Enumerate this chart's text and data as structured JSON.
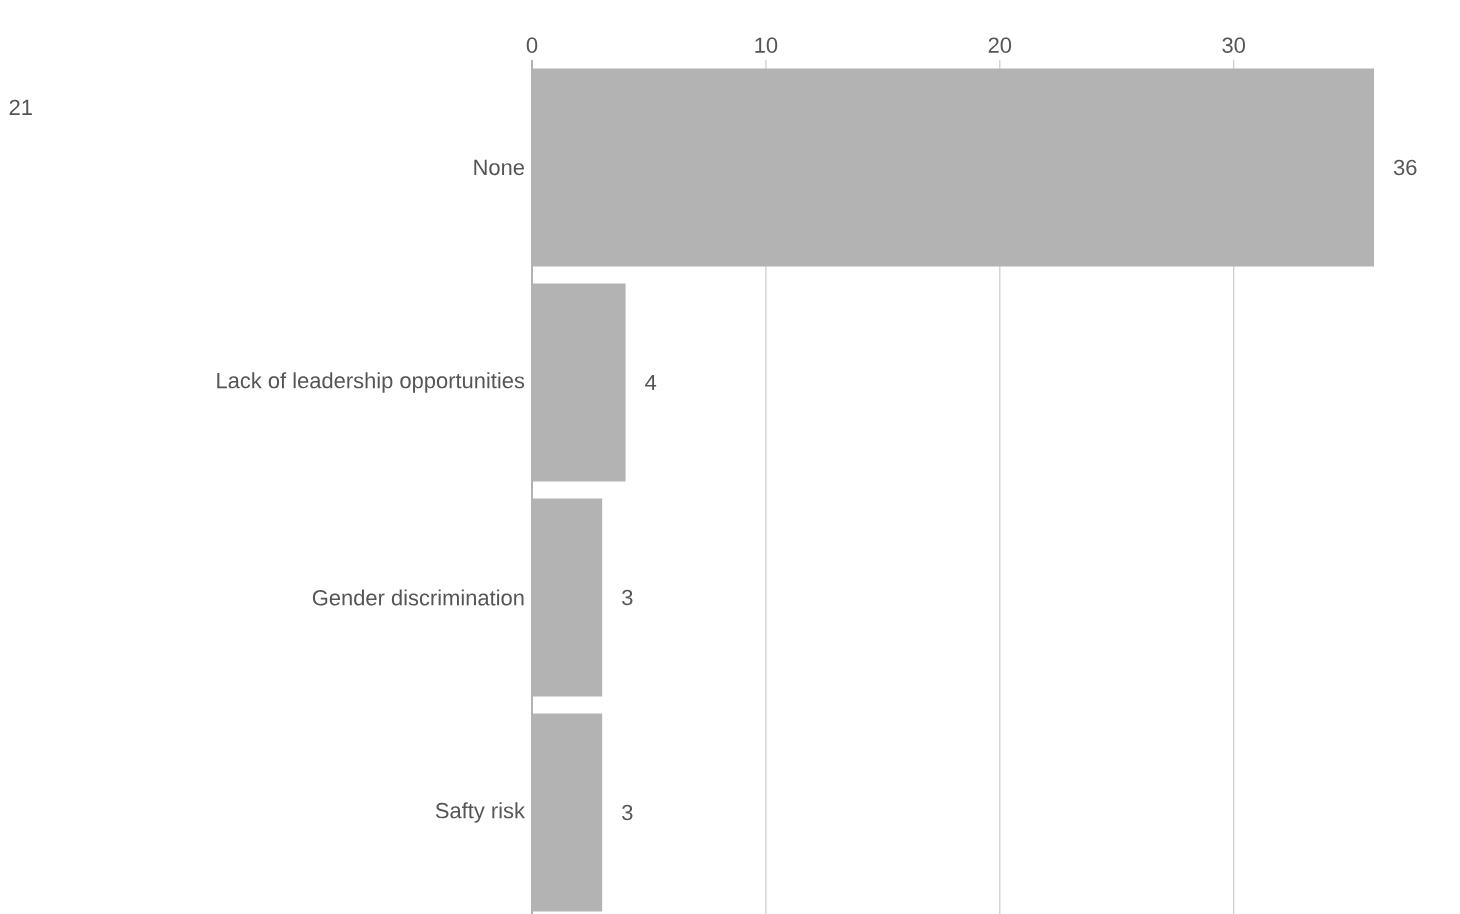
{
  "chart_data": {
    "type": "bar",
    "orientation": "horizontal",
    "categories": [
      "None",
      "Lack of leadership opportunities",
      "Gender discrimination",
      "Safty risk"
    ],
    "values": [
      36,
      4,
      3,
      3
    ],
    "color": "#b3b3b3",
    "xlim": [
      0,
      36
    ],
    "xticks": [
      0,
      10,
      20,
      30
    ],
    "grid": "x",
    "data_labels": true,
    "annotations": [
      "21"
    ]
  }
}
